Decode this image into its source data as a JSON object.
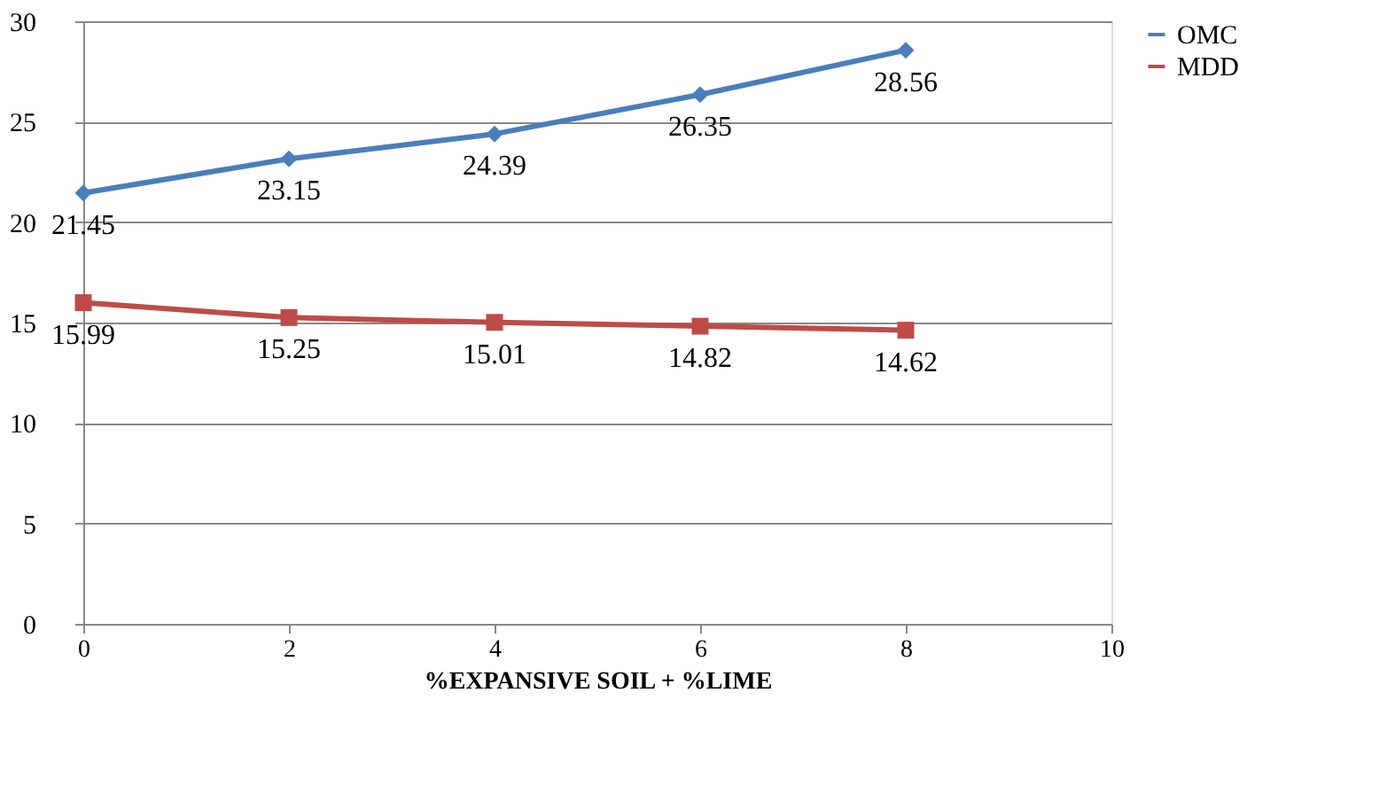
{
  "chart_data": {
    "type": "line",
    "xlabel": "%EXPANSIVE SOIL +  %LIME",
    "x": [
      0,
      2,
      4,
      6,
      8
    ],
    "series": [
      {
        "name": "OMC",
        "color": "#4a7ebb",
        "marker": "diamond",
        "values": [
          21.45,
          23.15,
          24.39,
          26.35,
          28.56
        ]
      },
      {
        "name": "MDD",
        "color": "#be4b48",
        "marker": "square",
        "values": [
          15.99,
          15.25,
          15.01,
          14.82,
          14.62
        ]
      }
    ],
    "xlim": [
      0,
      10
    ],
    "xticks": [
      0,
      2,
      4,
      6,
      8,
      10
    ],
    "ylim": [
      0,
      30
    ],
    "yticks": [
      0,
      5,
      10,
      15,
      20,
      25,
      30
    ],
    "grid": "y",
    "legend": "right",
    "data_labels": true,
    "line_style": "solid"
  }
}
